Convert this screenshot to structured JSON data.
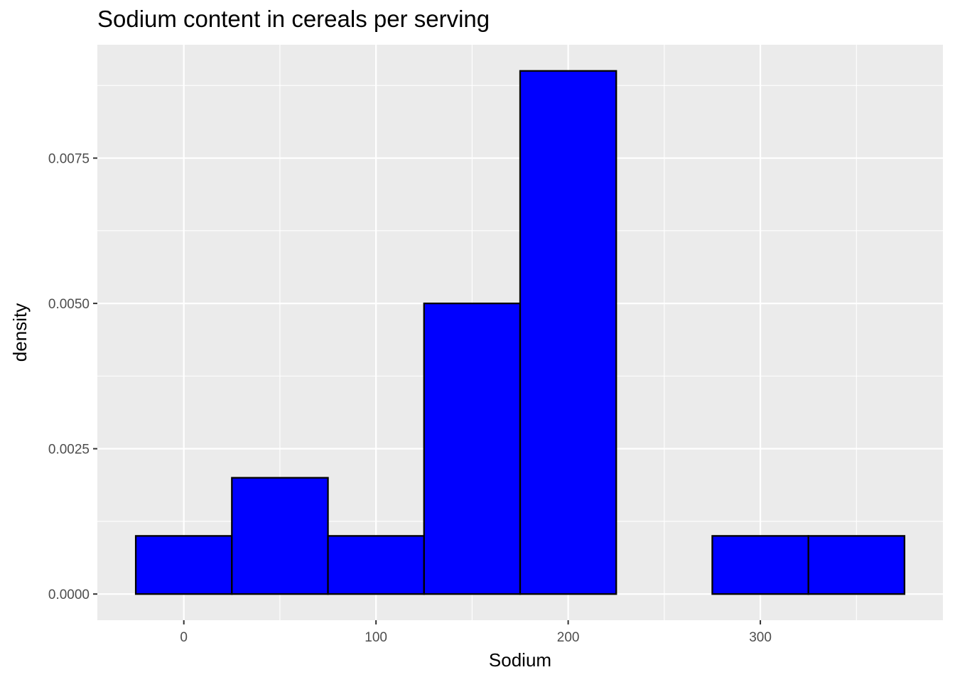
{
  "chart_data": {
    "type": "bar",
    "title": "Sodium content in cereals per serving",
    "xlabel": "Sodium",
    "ylabel": "density",
    "bins": [
      {
        "x0": -25,
        "x1": 25,
        "density": 0.001
      },
      {
        "x0": 25,
        "x1": 75,
        "density": 0.002
      },
      {
        "x0": 75,
        "x1": 125,
        "density": 0.001
      },
      {
        "x0": 125,
        "x1": 175,
        "density": 0.005
      },
      {
        "x0": 175,
        "x1": 225,
        "density": 0.009
      },
      {
        "x0": 225,
        "x1": 275,
        "density": 0.0
      },
      {
        "x0": 275,
        "x1": 325,
        "density": 0.001
      },
      {
        "x0": 325,
        "x1": 375,
        "density": 0.001
      }
    ],
    "x_ticks": [
      0,
      100,
      200,
      300
    ],
    "x_tick_labels": [
      "0",
      "100",
      "200",
      "300"
    ],
    "y_ticks": [
      0,
      0.0025,
      0.005,
      0.0075
    ],
    "y_tick_labels": [
      "0.0000",
      "0.0025",
      "0.0050",
      "0.0075"
    ],
    "xlim": [
      -45,
      395
    ],
    "ylim": [
      -0.00045,
      0.00945
    ],
    "grid": true,
    "panel_background": "#ebebeb",
    "bar_fill": "#0000ff",
    "bar_outline": "#000000"
  }
}
